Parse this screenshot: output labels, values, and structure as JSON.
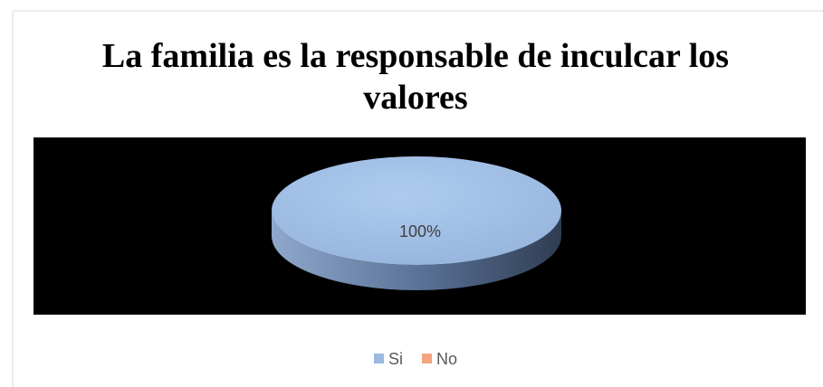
{
  "chart_data": {
    "type": "pie",
    "title": "La familia es la responsable de inculcar los valores",
    "title_lines": [
      "La familia es la responsable de inculcar los",
      "valores"
    ],
    "categories": [
      "Si",
      "No"
    ],
    "values": [
      100,
      0
    ],
    "data_labels": [
      "100%"
    ],
    "plot_background": "#000000",
    "colors": {
      "Si": "#9DB9E0",
      "No": "#F4A582",
      "frame": "#D9D9D9"
    },
    "three_d": true,
    "legend": {
      "position": "bottom",
      "entries": [
        "Si",
        "No"
      ]
    }
  }
}
